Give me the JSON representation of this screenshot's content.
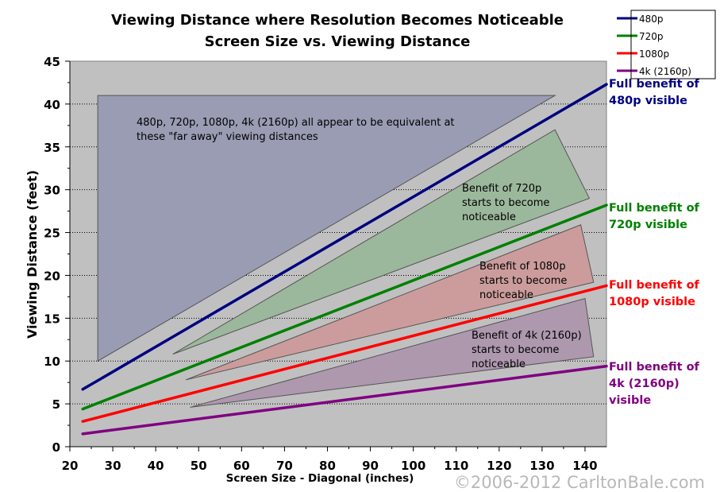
{
  "chart_data": {
    "type": "line",
    "title": "Viewing Distance where Resolution Becomes Noticeable",
    "subtitle": "Screen Size vs. Viewing Distance",
    "xlabel": "Screen Size - Diagonal (inches)",
    "ylabel": "Viewing Distance (feet)",
    "xlim": [
      20,
      145
    ],
    "ylim": [
      0,
      45
    ],
    "xticks": [
      20,
      30,
      40,
      50,
      60,
      70,
      80,
      90,
      100,
      110,
      120,
      130,
      140
    ],
    "yticks": [
      0,
      5,
      10,
      15,
      20,
      25,
      30,
      35,
      40,
      45
    ],
    "grid": "horizontal dotted",
    "legend_placement": "top-right",
    "plot_background": "#c0c0c0",
    "series": [
      {
        "name": "480p",
        "color": "#000080",
        "x": [
          23,
          145
        ],
        "y": [
          6.7,
          42.3
        ],
        "end_label": "Full benefit of 480p visible",
        "end_label_lines": [
          "Full benefit of",
          "480p visible"
        ]
      },
      {
        "name": "720p",
        "color": "#008000",
        "x": [
          23,
          145
        ],
        "y": [
          4.4,
          28.2
        ],
        "end_label_lines": [
          "Full benefit of",
          "720p visible"
        ]
      },
      {
        "name": "1080p",
        "color": "#ff0000",
        "x": [
          23,
          145
        ],
        "y": [
          2.95,
          18.8
        ],
        "end_label_lines": [
          "Full benefit of",
          "1080p visible"
        ]
      },
      {
        "name": "4k (2160p)",
        "color": "#800080",
        "x": [
          23,
          145
        ],
        "y": [
          1.5,
          9.4
        ],
        "end_label_lines": [
          "Full benefit of",
          "4k (2160p)",
          "visible"
        ]
      }
    ],
    "regions": [
      {
        "fill": "#9a9cb4",
        "points": [
          [
            26.5,
            41
          ],
          [
            133,
            41
          ],
          [
            26.5,
            10
          ]
        ],
        "label_lines": [
          "480p, 720p, 1080p, 4k (2160p) all appear to be equivalent at",
          "these \"far away\" viewing distances"
        ]
      },
      {
        "fill": "#9cb89c",
        "points": [
          [
            44,
            10.8
          ],
          [
            133,
            37
          ],
          [
            141,
            29
          ]
        ],
        "label_lines": [
          "Benefit of 720p",
          "starts to become",
          "noticeable"
        ]
      },
      {
        "fill": "#cc9c9c",
        "points": [
          [
            47,
            7.8
          ],
          [
            139,
            25.9
          ],
          [
            142,
            19.2
          ]
        ],
        "label_lines": [
          "Benefit of 1080p",
          "starts to become",
          "noticeable"
        ]
      },
      {
        "fill": "#ae98ae",
        "points": [
          [
            48,
            4.6
          ],
          [
            140,
            17.3
          ],
          [
            142,
            10.5
          ]
        ],
        "label_lines": [
          "Benefit of 4k (2160p)",
          "starts to become",
          "noticeable"
        ]
      }
    ],
    "copyright": "©2006-2012 CarltonBale.com"
  }
}
